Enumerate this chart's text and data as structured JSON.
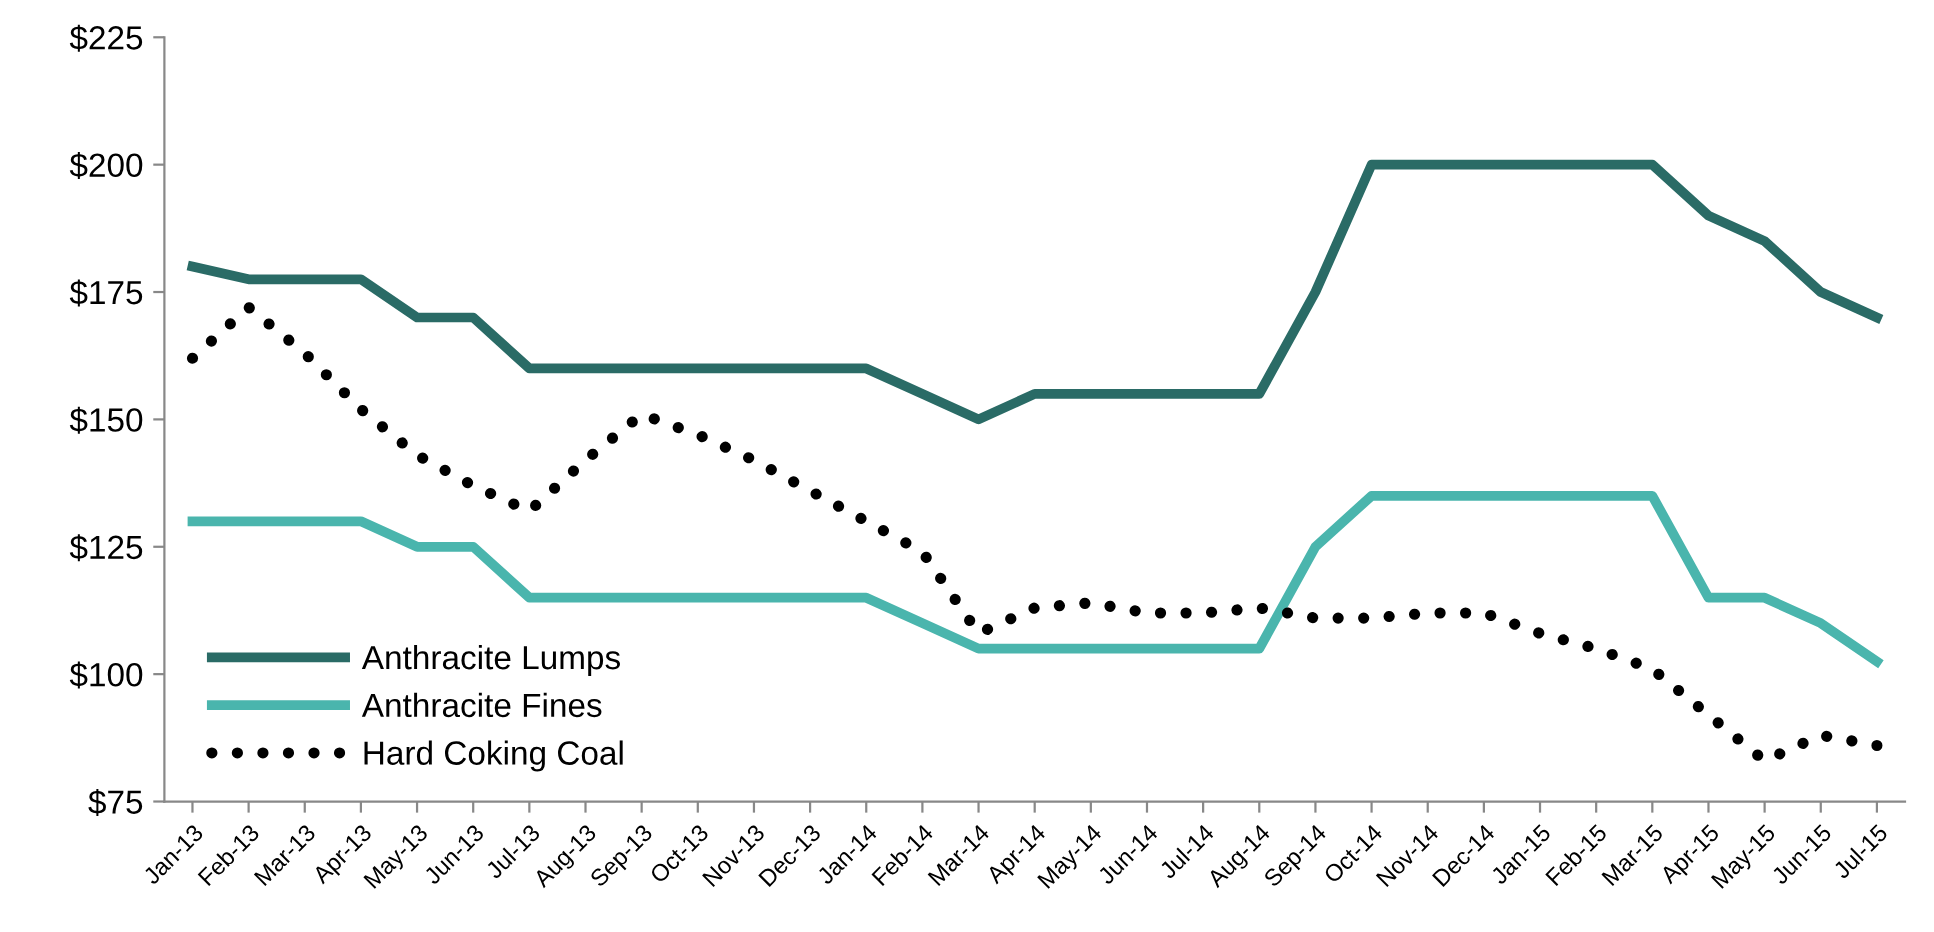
{
  "chart_data": {
    "type": "line",
    "categories": [
      "Jan-13",
      "Feb-13",
      "Mar-13",
      "Apr-13",
      "May-13",
      "Jun-13",
      "Jul-13",
      "Aug-13",
      "Sep-13",
      "Oct-13",
      "Nov-13",
      "Dec-13",
      "Jan-14",
      "Feb-14",
      "Mar-14",
      "Apr-14",
      "May-14",
      "Jun-14",
      "Jul-14",
      "Aug-14",
      "Sep-14",
      "Oct-14",
      "Nov-14",
      "Dec-14",
      "Jan-15",
      "Feb-15",
      "Mar-15",
      "Apr-15",
      "May-15",
      "Jun-15",
      "Jul-15"
    ],
    "series": [
      {
        "name": "Anthracite Lumps",
        "color": "#2a6b66",
        "line_style": "solid",
        "values": [
          180,
          177.5,
          177.5,
          177.5,
          170,
          170,
          160,
          160,
          160,
          160,
          160,
          160,
          160,
          155,
          150,
          155,
          155,
          155,
          155,
          155,
          175,
          200,
          200,
          200,
          200,
          200,
          200,
          190,
          185,
          175,
          170
        ]
      },
      {
        "name": "Anthracite Fines",
        "color": "#4ab5ad",
        "line_style": "solid",
        "values": [
          130,
          130,
          130,
          130,
          125,
          125,
          115,
          115,
          115,
          115,
          115,
          115,
          115,
          110,
          105,
          105,
          105,
          105,
          105,
          105,
          125,
          135,
          135,
          135,
          135,
          135,
          135,
          115,
          115,
          110,
          102.5
        ]
      },
      {
        "name": "Hard Coking Coal",
        "color": "#000000",
        "line_style": "dotted",
        "values": [
          162,
          172,
          163,
          152,
          143,
          137,
          132,
          142,
          151,
          147,
          142,
          136,
          130,
          124,
          108,
          113,
          114,
          112,
          112,
          113,
          111,
          111,
          112,
          112,
          108,
          105,
          101,
          92,
          83,
          88,
          86
        ]
      }
    ],
    "ylim": [
      75,
      225
    ],
    "yticks": [
      {
        "value": 75,
        "label": "$75"
      },
      {
        "value": 100,
        "label": "$100"
      },
      {
        "value": 125,
        "label": "$125"
      },
      {
        "value": 150,
        "label": "$150"
      },
      {
        "value": 175,
        "label": "$175"
      },
      {
        "value": 200,
        "label": "$200"
      },
      {
        "value": 225,
        "label": "$225"
      }
    ],
    "grid": false,
    "legend": "bottom left",
    "marker": "none"
  }
}
